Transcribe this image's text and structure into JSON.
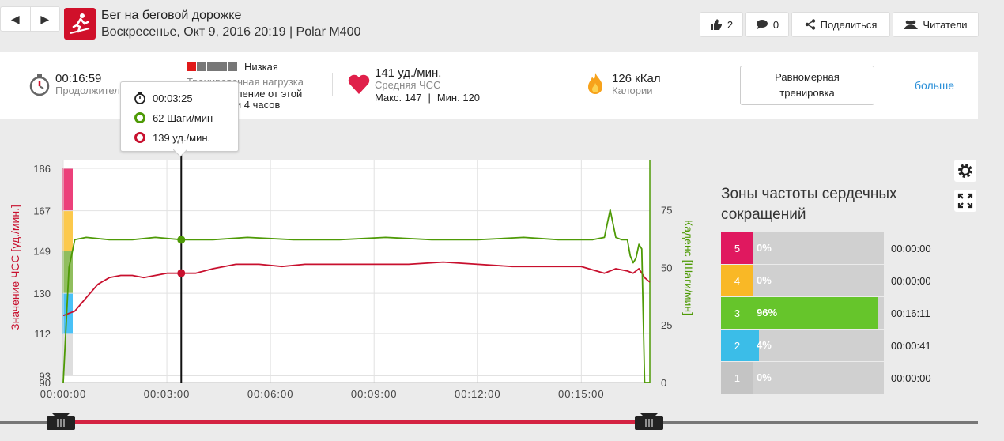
{
  "nav": {
    "back_icon": "◀",
    "forward_icon": "▶"
  },
  "header": {
    "title": "Бег на беговой дорожке",
    "subtitle": "Воскресенье, Окт 9, 2016 20:19 | Polar M400",
    "likes_count": "2",
    "comments_count": "0",
    "share_label": "Поделиться",
    "readers_label": "Читатели"
  },
  "summary": {
    "duration_value": "00:16:59",
    "duration_label": "Продолжительность",
    "load_level": "Низкая",
    "load_label": "Тренировочная нагрузка",
    "load_desc_1": "Восстановление от этой",
    "load_desc_2": "тренировки 4 часов",
    "hr_value": "141 уд./мин.",
    "hr_label": "Средняя ЧСС",
    "hr_max": "Макс. 147",
    "hr_sep": "|",
    "hr_min": "Мин. 120",
    "cal_value": "126 кКал",
    "cal_label": "Калории",
    "plan_line1": "Равномерная",
    "plan_line2": "тренировка",
    "more_label": "больше"
  },
  "tooltip": {
    "time": "00:03:25",
    "cadence": "62 Шаги/мин",
    "hr": "139 уд./мин."
  },
  "chart_data": {
    "type": "line",
    "xlabel": "",
    "ylabel_left": "Значение ЧСС [уд./мин.]",
    "ylabel_right": "Каденс [Шаги/мин]",
    "x_ticks": [
      "00:00:00",
      "00:03:00",
      "00:06:00",
      "00:09:00",
      "00:12:00",
      "00:15:00"
    ],
    "x_range_seconds": [
      0,
      1019
    ],
    "yleft_ticks": [
      "186",
      "167",
      "149",
      "130",
      "112",
      "93",
      "90"
    ],
    "yleft_range": [
      90,
      186
    ],
    "yright_ticks": [
      "75",
      "50",
      "25",
      "0"
    ],
    "yright_range": [
      0,
      93
    ],
    "colors": {
      "hr": "#c8102e",
      "cadence": "#4e9a06"
    },
    "series": [
      {
        "name": "ЧСС",
        "unit": "уд./мин.",
        "x": [
          0,
          20,
          40,
          60,
          80,
          100,
          120,
          140,
          160,
          180,
          200,
          205,
          230,
          260,
          300,
          340,
          380,
          420,
          480,
          540,
          600,
          660,
          720,
          780,
          840,
          900,
          940,
          960,
          980,
          990,
          1000,
          1010,
          1019
        ],
        "values": [
          120,
          122,
          128,
          134,
          137,
          138,
          138,
          137,
          138,
          139,
          139,
          139,
          139,
          141,
          143,
          143,
          142,
          143,
          143,
          143,
          143,
          144,
          143,
          142,
          142,
          142,
          139,
          141,
          140,
          139,
          141,
          137,
          135
        ]
      },
      {
        "name": "Каденс",
        "unit": "Шаги/мин",
        "x": [
          0,
          10,
          20,
          40,
          80,
          120,
          160,
          205,
          260,
          320,
          400,
          480,
          560,
          640,
          720,
          800,
          860,
          900,
          920,
          940,
          950,
          960,
          970,
          980,
          985,
          990,
          995,
          1000,
          1005,
          1010,
          1019
        ],
        "values": [
          0,
          50,
          62,
          63,
          62,
          62,
          63,
          62,
          62,
          63,
          62,
          62,
          63,
          62,
          62,
          63,
          62,
          62,
          62,
          63,
          75,
          63,
          62,
          62,
          55,
          52,
          54,
          60,
          58,
          0,
          0
        ]
      }
    ],
    "cursor_x_seconds": 205,
    "hr_zone_colors": [
      "#e91e63",
      "#fbc02d",
      "#7cb342",
      "#29b6f6",
      "#bdbdbd"
    ]
  },
  "zones": {
    "title_line1": "Зоны частоты сердечных",
    "title_line2": "сокращений",
    "items": [
      {
        "num": "5",
        "pct_label": "0%",
        "pct": 0,
        "time": "00:00:00",
        "color": "#e0185f",
        "fill": "#e0185f"
      },
      {
        "num": "4",
        "pct_label": "0%",
        "pct": 0,
        "time": "00:00:00",
        "color": "#f9b826",
        "fill": "#f9b826"
      },
      {
        "num": "3",
        "pct_label": "96%",
        "pct": 96,
        "time": "00:16:11",
        "color": "#66c52b",
        "fill": "#66c52b"
      },
      {
        "num": "2",
        "pct_label": "4%",
        "pct": 4,
        "time": "00:00:41",
        "color": "#3bbde8",
        "fill": "#3bbde8"
      },
      {
        "num": "1",
        "pct_label": "0%",
        "pct": 0,
        "time": "00:00:00",
        "color": "#c4c4c4",
        "fill": "#c4c4c4"
      }
    ]
  },
  "icons": {
    "settings": "gear-icon",
    "fullscreen": "expand-icon"
  }
}
